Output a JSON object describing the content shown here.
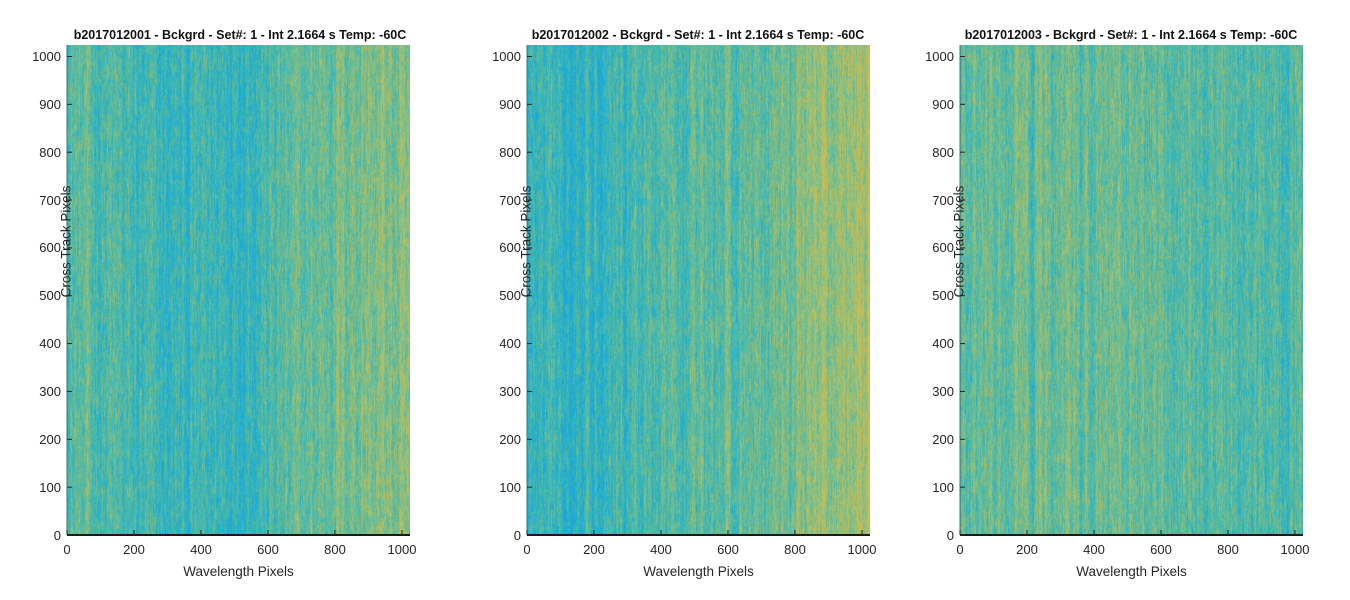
{
  "figure": {
    "background": "#ffffff"
  },
  "colormap": [
    "#1aa7d9",
    "#2fb3c0",
    "#52b9a3",
    "#7cbd89",
    "#a9bf6b",
    "#d2bb4f"
  ],
  "chart_data": [
    {
      "type": "heatmap",
      "title": "b2017012001 - Bckgrd - Set#: 1 - Int 2.1664 s Temp: -60C",
      "xlabel": "Wavelength Pixels",
      "ylabel": "Cross Track Pixels",
      "xlim": [
        0,
        1024
      ],
      "ylim": [
        0,
        1024
      ],
      "xticks": [
        0,
        200,
        400,
        600,
        800,
        1000
      ],
      "yticks": [
        0,
        100,
        200,
        300,
        400,
        500,
        600,
        700,
        800,
        900,
        1000
      ],
      "column_profile": {
        "x": [
          0,
          100,
          200,
          300,
          400,
          500,
          600,
          700,
          800,
          900,
          1024
        ],
        "level": [
          0.45,
          0.38,
          0.28,
          0.22,
          0.25,
          0.3,
          0.35,
          0.45,
          0.58,
          0.62,
          0.55
        ]
      }
    },
    {
      "type": "heatmap",
      "title": "b2017012002 - Bckgrd - Set#: 1 - Int 2.1664 s Temp: -60C",
      "xlabel": "Wavelength Pixels",
      "ylabel": "Cross Track Pixels",
      "xlim": [
        0,
        1024
      ],
      "ylim": [
        0,
        1024
      ],
      "xticks": [
        0,
        200,
        400,
        600,
        800,
        1000
      ],
      "yticks": [
        0,
        100,
        200,
        300,
        400,
        500,
        600,
        700,
        800,
        900,
        1000
      ],
      "column_profile": {
        "x": [
          0,
          100,
          200,
          300,
          400,
          500,
          600,
          700,
          800,
          900,
          1024
        ],
        "level": [
          0.22,
          0.25,
          0.3,
          0.35,
          0.38,
          0.42,
          0.45,
          0.5,
          0.58,
          0.72,
          0.78
        ]
      }
    },
    {
      "type": "heatmap",
      "title": "b2017012003 - Bckgrd - Set#: 1 - Int 2.1664 s Temp: -60C",
      "xlabel": "Wavelength Pixels",
      "ylabel": "Cross Track Pixels",
      "xlim": [
        0,
        1024
      ],
      "ylim": [
        0,
        1024
      ],
      "xticks": [
        0,
        200,
        400,
        600,
        800,
        1000
      ],
      "yticks": [
        0,
        100,
        200,
        300,
        400,
        500,
        600,
        700,
        800,
        900,
        1000
      ],
      "column_profile": {
        "x": [
          0,
          100,
          200,
          300,
          400,
          500,
          600,
          700,
          800,
          900,
          1024
        ],
        "level": [
          0.42,
          0.45,
          0.48,
          0.5,
          0.5,
          0.47,
          0.45,
          0.43,
          0.42,
          0.42,
          0.4
        ]
      }
    }
  ]
}
